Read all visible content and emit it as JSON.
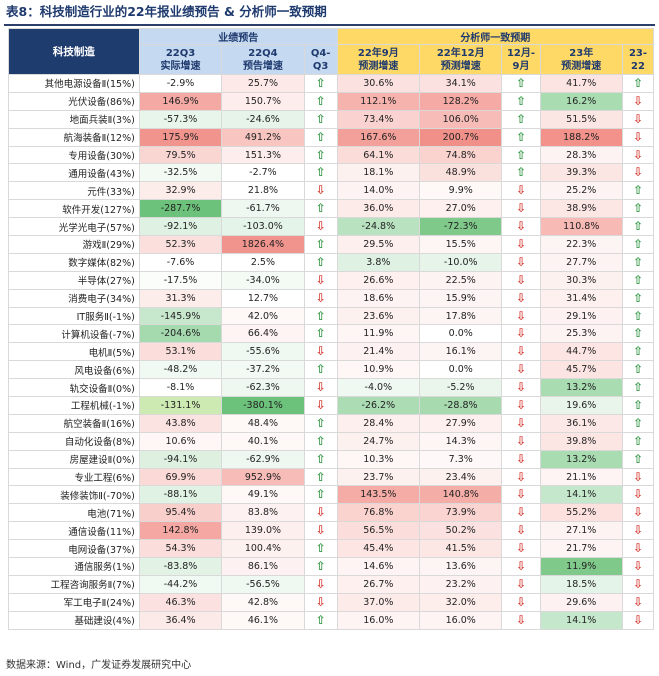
{
  "title": "表8：科技制造行业的22年报业绩预告 & 分析师一致预期",
  "header": {
    "industry": "科技制造",
    "group_forecast": "业绩预告",
    "group_consensus": "分析师一致预期",
    "cols": [
      {
        "l1": "22Q3",
        "l2": "实际增速"
      },
      {
        "l1": "22Q4",
        "l2": "预告增速"
      },
      {
        "l1": "Q4-",
        "l2": "Q3"
      },
      {
        "l1": "22年9月",
        "l2": "预测增速"
      },
      {
        "l1": "22年12月",
        "l2": "预测增速"
      },
      {
        "l1": "12月-",
        "l2": "9月"
      },
      {
        "l1": "23年",
        "l2": "预测增速"
      },
      {
        "l1": "23-",
        "l2": "22"
      }
    ]
  },
  "colors": {
    "navy": "#1f3c6f",
    "header_blue": "#c5d9f1",
    "header_yellow": "#ffd966",
    "arrow_up": "#3a9a4a",
    "arrow_down": "#d9453d",
    "heat_red_strong": "#f4a09b",
    "heat_green_strong": "#6cc27a"
  },
  "icons": {
    "up": "green-up-arrow-icon",
    "down": "red-down-arrow-icon"
  },
  "rows": [
    {
      "name": "其他电源设备Ⅱ(15%)",
      "q3": "-2.9%",
      "q4": "25.7%",
      "d1": "up",
      "s9": "30.6%",
      "s12": "34.1%",
      "d2": "up",
      "y23": "41.7%",
      "d3": "up",
      "c": [
        "#ffffff",
        "#fce9e8",
        "#fbe1df",
        "#fbe1df",
        "#fce4e2"
      ]
    },
    {
      "name": "光伏设备(86%)",
      "q3": "146.9%",
      "q4": "150.7%",
      "d1": "up",
      "s9": "112.1%",
      "s12": "128.2%",
      "d2": "up",
      "y23": "16.2%",
      "d3": "down",
      "c": [
        "#f5a9a4",
        "#fdeeed",
        "#f6b3ae",
        "#f5aaa5",
        "#a9dcb1"
      ]
    },
    {
      "name": "地面兵装Ⅱ(3%)",
      "q3": "-57.3%",
      "q4": "-24.6%",
      "d1": "up",
      "s9": "73.4%",
      "s12": "106.0%",
      "d2": "up",
      "y23": "51.5%",
      "d3": "down",
      "c": [
        "#e8f5ea",
        "#e6f4e9",
        "#fad3d0",
        "#f7bcb8",
        "#fce6e4"
      ]
    },
    {
      "name": "航海装备Ⅱ(12%)",
      "q3": "175.9%",
      "q4": "491.2%",
      "d1": "up",
      "s9": "167.6%",
      "s12": "200.7%",
      "d2": "up",
      "y23": "188.2%",
      "d3": "down",
      "c": [
        "#f2948e",
        "#f8c5c1",
        "#f3a09a",
        "#f19089",
        "#f2928b"
      ]
    },
    {
      "name": "专用设备(30%)",
      "q3": "79.5%",
      "q4": "151.3%",
      "d1": "up",
      "s9": "64.1%",
      "s12": "74.8%",
      "d2": "up",
      "y23": "28.3%",
      "d3": "down",
      "c": [
        "#fad6d3",
        "#fdeeed",
        "#fbdcd9",
        "#fad3cf",
        "#fdf3f2"
      ]
    },
    {
      "name": "通用设备(43%)",
      "q3": "-32.5%",
      "q4": "-2.7%",
      "d1": "up",
      "s9": "18.1%",
      "s12": "48.9%",
      "d2": "up",
      "y23": "39.3%",
      "d3": "down",
      "c": [
        "#f2faf3",
        "#ffffff",
        "#fdf1f0",
        "#fbe1de",
        "#fce6e4"
      ]
    },
    {
      "name": "元件(33%)",
      "q3": "32.9%",
      "q4": "21.8%",
      "d1": "down",
      "s9": "14.0%",
      "s12": "9.9%",
      "d2": "down",
      "y23": "25.2%",
      "d3": "up",
      "c": [
        "#fcecea",
        "#ffffff",
        "#fdf3f2",
        "#fef8f7",
        "#fdf3f2"
      ]
    },
    {
      "name": "软件开发(127%)",
      "q3": "-287.7%",
      "q4": "-61.7%",
      "d1": "up",
      "s9": "36.0%",
      "s12": "27.0%",
      "d2": "down",
      "y23": "38.9%",
      "d3": "up",
      "c": [
        "#6cc27a",
        "#eef8f0",
        "#fcebe9",
        "#fdf0ee",
        "#fce7e5"
      ]
    },
    {
      "name": "光学光电子(57%)",
      "q3": "-92.1%",
      "q4": "-103.0%",
      "d1": "down",
      "s9": "-24.8%",
      "s12": "-72.3%",
      "d2": "down",
      "y23": "110.8%",
      "d3": "up",
      "c": [
        "#dff1e2",
        "#e5f4e8",
        "#b9e2c0",
        "#7fca8b",
        "#f7bab5"
      ]
    },
    {
      "name": "游戏Ⅱ(29%)",
      "q3": "52.3%",
      "q4": "1826.4%",
      "d1": "up",
      "s9": "29.5%",
      "s12": "15.5%",
      "d2": "down",
      "y23": "22.3%",
      "d3": "up",
      "c": [
        "#fbdfdc",
        "#f2948e",
        "#fdefee",
        "#fef6f5",
        "#fdf5f4"
      ]
    },
    {
      "name": "数字媒体(82%)",
      "q3": "-7.6%",
      "q4": "2.5%",
      "d1": "up",
      "s9": "3.8%",
      "s12": "-10.0%",
      "d2": "down",
      "y23": "27.7%",
      "d3": "up",
      "c": [
        "#ffffff",
        "#ffffff",
        "#dff1e2",
        "#e6f4e9",
        "#fdf3f2"
      ]
    },
    {
      "name": "半导体(27%)",
      "q3": "-17.5%",
      "q4": "-34.0%",
      "d1": "down",
      "s9": "26.6%",
      "s12": "22.5%",
      "d2": "down",
      "y23": "30.3%",
      "d3": "up",
      "c": [
        "#fafdfa",
        "#f4fbf5",
        "#fdf0ef",
        "#fdf3f2",
        "#fdf1f0"
      ]
    },
    {
      "name": "消费电子(34%)",
      "q3": "31.3%",
      "q4": "12.7%",
      "d1": "down",
      "s9": "18.6%",
      "s12": "15.9%",
      "d2": "down",
      "y23": "31.4%",
      "d3": "up",
      "c": [
        "#fcecea",
        "#ffffff",
        "#fdf3f2",
        "#fdf5f4",
        "#fdf0ef"
      ]
    },
    {
      "name": "IT服务Ⅱ(-1%)",
      "q3": "-145.9%",
      "q4": "42.0%",
      "d1": "up",
      "s9": "23.6%",
      "s12": "17.8%",
      "d2": "down",
      "y23": "29.1%",
      "d3": "up",
      "c": [
        "#c8e8ce",
        "#fef8f7",
        "#fdf1f0",
        "#fdf5f4",
        "#fdf2f1"
      ]
    },
    {
      "name": "计算机设备(-7%)",
      "q3": "-204.6%",
      "q4": "66.4%",
      "d1": "up",
      "s9": "11.9%",
      "s12": "0.0%",
      "d2": "down",
      "y23": "25.3%",
      "d3": "up",
      "c": [
        "#a5d9ae",
        "#fdf4f3",
        "#fef6f5",
        "#ffffff",
        "#fdf3f2"
      ]
    },
    {
      "name": "电机Ⅱ(5%)",
      "q3": "53.1%",
      "q4": "-55.6%",
      "d1": "down",
      "s9": "21.4%",
      "s12": "16.1%",
      "d2": "down",
      "y23": "44.7%",
      "d3": "up",
      "c": [
        "#fbdedb",
        "#eff8f1",
        "#fdf2f1",
        "#fdf5f4",
        "#fce5e3"
      ]
    },
    {
      "name": "风电设备(6%)",
      "q3": "-48.2%",
      "q4": "-37.2%",
      "d1": "up",
      "s9": "10.9%",
      "s12": "0.0%",
      "d2": "down",
      "y23": "45.7%",
      "d3": "up",
      "c": [
        "#f0f9f2",
        "#f3faf4",
        "#fef7f6",
        "#ffffff",
        "#fce4e2"
      ]
    },
    {
      "name": "轨交设备Ⅱ(0%)",
      "q3": "-8.1%",
      "q4": "-62.3%",
      "d1": "down",
      "s9": "-4.0%",
      "s12": "-5.2%",
      "d2": "down",
      "y23": "13.2%",
      "d3": "up",
      "c": [
        "#ffffff",
        "#eef8f0",
        "#eff8f1",
        "#eaf6ec",
        "#a9dcb1"
      ]
    },
    {
      "name": "工程机械(-1%)",
      "q3": "-131.1%",
      "q4": "-380.1%",
      "d1": "down",
      "s9": "-26.2%",
      "s12": "-28.8%",
      "d2": "down",
      "y23": "19.6%",
      "d3": "up",
      "c": [
        "#cdeab2",
        "#6cc27a",
        "#acdcb3",
        "#a7daaf",
        "#e9f5eb"
      ]
    },
    {
      "name": "航空装备Ⅱ(16%)",
      "q3": "43.8%",
      "q4": "48.4%",
      "d1": "up",
      "s9": "28.4%",
      "s12": "27.9%",
      "d2": "down",
      "y23": "36.1%",
      "d3": "up",
      "c": [
        "#fbe3e1",
        "#fef8f7",
        "#fdefee",
        "#fdf0ee",
        "#fce9e7"
      ]
    },
    {
      "name": "自动化设备(8%)",
      "q3": "10.6%",
      "q4": "40.1%",
      "d1": "up",
      "s9": "24.7%",
      "s12": "14.3%",
      "d2": "down",
      "y23": "39.8%",
      "d3": "up",
      "c": [
        "#fef7f6",
        "#fef8f7",
        "#fdf1f0",
        "#fdf6f5",
        "#fce6e4"
      ]
    },
    {
      "name": "房屋建设Ⅱ(0%)",
      "q3": "-94.1%",
      "q4": "-62.9%",
      "d1": "up",
      "s9": "10.3%",
      "s12": "7.3%",
      "d2": "down",
      "y23": "13.2%",
      "d3": "up",
      "c": [
        "#def1e1",
        "#eef8f0",
        "#fef7f6",
        "#fef9f8",
        "#a9dcb1"
      ]
    },
    {
      "name": "专业工程(6%)",
      "q3": "69.9%",
      "q4": "952.9%",
      "d1": "up",
      "s9": "23.7%",
      "s12": "23.4%",
      "d2": "down",
      "y23": "21.1%",
      "d3": "down",
      "c": [
        "#fad9d6",
        "#f7bcb8",
        "#fdf1f0",
        "#fdf1f0",
        "#fdf4f3"
      ]
    },
    {
      "name": "装修装饰Ⅱ(-70%)",
      "q3": "-88.1%",
      "q4": "49.1%",
      "d1": "up",
      "s9": "143.5%",
      "s12": "140.8%",
      "d2": "down",
      "y23": "14.1%",
      "d3": "down",
      "c": [
        "#e0f2e3",
        "#fef8f7",
        "#f5aba6",
        "#f5ada8",
        "#c5e7cb"
      ]
    },
    {
      "name": "电池(71%)",
      "q3": "95.4%",
      "q4": "83.8%",
      "d1": "down",
      "s9": "76.8%",
      "s12": "73.9%",
      "d2": "down",
      "y23": "55.2%",
      "d3": "down",
      "c": [
        "#f9cfcb",
        "#fdf2f1",
        "#fad2ce",
        "#fad4d1",
        "#fce1df"
      ]
    },
    {
      "name": "通信设备(11%)",
      "q3": "142.8%",
      "q4": "139.0%",
      "d1": "down",
      "s9": "56.5%",
      "s12": "50.2%",
      "d2": "down",
      "y23": "27.1%",
      "d3": "down",
      "c": [
        "#f5a8a3",
        "#fdefee",
        "#fbdedb",
        "#fbe2e0",
        "#fdf3f2"
      ]
    },
    {
      "name": "电网设备(37%)",
      "q3": "54.3%",
      "q4": "100.4%",
      "d1": "up",
      "s9": "45.4%",
      "s12": "41.5%",
      "d2": "down",
      "y23": "21.7%",
      "d3": "down",
      "c": [
        "#fbdedb",
        "#fdf1f0",
        "#fce5e3",
        "#fce7e5",
        "#fdf4f3"
      ]
    },
    {
      "name": "通信服务(1%)",
      "q3": "-83.8%",
      "q4": "86.1%",
      "d1": "up",
      "s9": "14.6%",
      "s12": "13.6%",
      "d2": "down",
      "y23": "11.9%",
      "d3": "down",
      "c": [
        "#e2f2e5",
        "#fdf2f1",
        "#fdf4f3",
        "#fdf5f4",
        "#7fca8b"
      ]
    },
    {
      "name": "工程咨询服务Ⅱ(7%)",
      "q3": "-44.2%",
      "q4": "-56.5%",
      "d1": "down",
      "s9": "26.7%",
      "s12": "23.2%",
      "d2": "down",
      "y23": "18.5%",
      "d3": "down",
      "c": [
        "#f1f9f3",
        "#eff8f1",
        "#fdf0ef",
        "#fdf2f1",
        "#e5f4e8"
      ]
    },
    {
      "name": "军工电子Ⅱ(24%)",
      "q3": "46.3%",
      "q4": "42.8%",
      "d1": "down",
      "s9": "37.0%",
      "s12": "32.0%",
      "d2": "down",
      "y23": "29.6%",
      "d3": "down",
      "c": [
        "#fbe2e0",
        "#fef8f7",
        "#fcebe9",
        "#fdeeec",
        "#fdf2f1"
      ]
    },
    {
      "name": "基础建设(4%)",
      "q3": "36.4%",
      "q4": "46.1%",
      "d1": "up",
      "s9": "16.0%",
      "s12": "16.0%",
      "d2": "down",
      "y23": "14.1%",
      "d3": "down",
      "c": [
        "#fceae8",
        "#fef8f7",
        "#fdf4f3",
        "#fdf4f3",
        "#c5e7cb"
      ]
    }
  ],
  "footer": "数据来源：Wind，广发证券发展研究中心"
}
